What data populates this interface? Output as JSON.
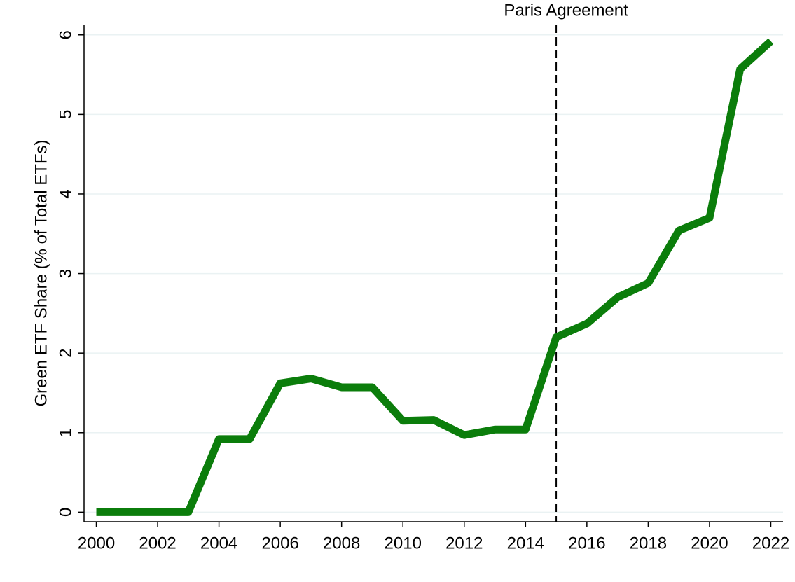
{
  "chart_data": {
    "type": "line",
    "ylabel": "Green ETF Share (% of Total ETFs)",
    "x": [
      2000,
      2001,
      2002,
      2003,
      2004,
      2005,
      2006,
      2007,
      2008,
      2009,
      2010,
      2011,
      2012,
      2013,
      2014,
      2015,
      2016,
      2017,
      2018,
      2019,
      2020,
      2021,
      2022
    ],
    "series": [
      {
        "color": "#0b7d0b",
        "values": [
          0,
          0,
          0,
          0,
          0.92,
          0.92,
          1.62,
          1.68,
          1.57,
          1.57,
          1.15,
          1.16,
          0.97,
          1.04,
          1.04,
          2.2,
          2.37,
          2.7,
          2.88,
          3.54,
          3.7,
          5.57,
          5.92
        ]
      }
    ],
    "xlim": [
      1999.6,
      2022.4
    ],
    "ylim": [
      -0.12,
      6.13
    ],
    "xticks": [
      2000,
      2002,
      2004,
      2006,
      2008,
      2010,
      2012,
      2014,
      2016,
      2018,
      2020,
      2022
    ],
    "yticks": [
      0,
      1,
      2,
      3,
      4,
      5,
      6
    ],
    "grid": true,
    "annotations": [
      {
        "text": "Paris Agreement",
        "x": 2015
      }
    ]
  }
}
